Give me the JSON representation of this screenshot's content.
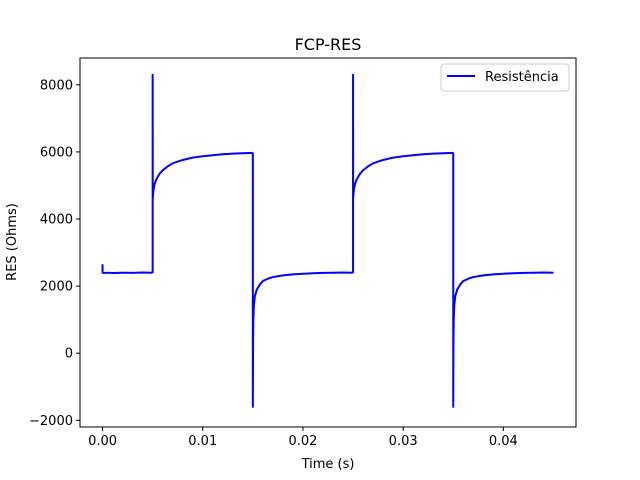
{
  "chart_data": {
    "type": "line",
    "title": "FCP-RES",
    "xlabel": "Time (s)",
    "ylabel": "RES (Ohms)",
    "xlim": [
      -0.00225,
      0.04725
    ],
    "ylim": [
      -2200,
      8800
    ],
    "x_ticks": [
      0.0,
      0.01,
      0.02,
      0.03,
      0.04
    ],
    "x_tick_labels": [
      "0.00",
      "0.01",
      "0.02",
      "0.03",
      "0.04"
    ],
    "y_ticks": [
      -2000,
      0,
      2000,
      4000,
      6000,
      8000
    ],
    "y_tick_labels": [
      "−2000",
      "0",
      "2000",
      "4000",
      "6000",
      "8000"
    ],
    "grid": false,
    "legend_position": "top-right",
    "series": [
      {
        "name": "Resistência",
        "color": "#0000ff",
        "x": [
          0.0,
          0.0,
          0.0001,
          0.0005,
          0.001,
          0.002,
          0.003,
          0.004,
          0.0049,
          0.005,
          0.005,
          0.00501,
          0.00504,
          0.0051,
          0.0052,
          0.0054,
          0.0057,
          0.006,
          0.0065,
          0.007,
          0.008,
          0.009,
          0.01,
          0.011,
          0.012,
          0.013,
          0.014,
          0.0149,
          0.015,
          0.015,
          0.01502,
          0.01505,
          0.0151,
          0.0152,
          0.0154,
          0.0157,
          0.016,
          0.0165,
          0.017,
          0.018,
          0.019,
          0.02,
          0.021,
          0.022,
          0.023,
          0.024,
          0.0249,
          0.025,
          0.025,
          0.02501,
          0.02504,
          0.0251,
          0.0252,
          0.0254,
          0.0257,
          0.026,
          0.0265,
          0.027,
          0.028,
          0.029,
          0.03,
          0.031,
          0.032,
          0.033,
          0.034,
          0.0349,
          0.035,
          0.035,
          0.03502,
          0.03505,
          0.0351,
          0.0352,
          0.0354,
          0.0357,
          0.036,
          0.0365,
          0.037,
          0.038,
          0.039,
          0.04,
          0.041,
          0.042,
          0.043,
          0.044,
          0.045
        ],
        "y": [
          2650,
          2400,
          2390,
          2400,
          2390,
          2400,
          2395,
          2405,
          2400,
          2410,
          8300,
          4600,
          4750,
          4900,
          5050,
          5200,
          5350,
          5450,
          5570,
          5660,
          5760,
          5830,
          5870,
          5900,
          5930,
          5950,
          5960,
          5970,
          5960,
          -1600,
          300,
          1000,
          1400,
          1700,
          1900,
          2050,
          2150,
          2220,
          2270,
          2320,
          2350,
          2370,
          2385,
          2395,
          2400,
          2405,
          2400,
          2410,
          8300,
          4600,
          4750,
          4900,
          5050,
          5200,
          5350,
          5450,
          5570,
          5660,
          5760,
          5830,
          5870,
          5900,
          5930,
          5950,
          5960,
          5970,
          5960,
          -1600,
          300,
          1000,
          1400,
          1700,
          1900,
          2050,
          2150,
          2220,
          2270,
          2320,
          2350,
          2370,
          2385,
          2395,
          2400,
          2405,
          2400
        ]
      }
    ]
  }
}
